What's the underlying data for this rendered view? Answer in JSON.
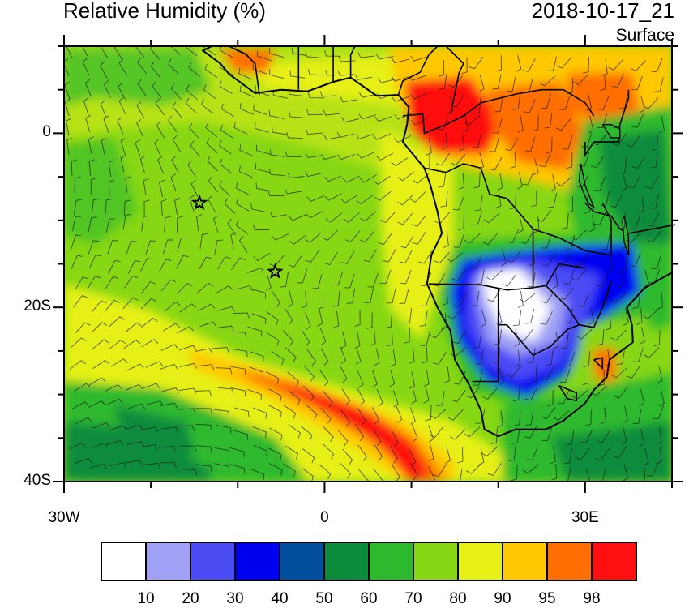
{
  "title": "Relative Humidity (%)",
  "datetime": "2018-10-17_21",
  "level": "Surface",
  "lat_ticks": [
    "0",
    "20S",
    "40S"
  ],
  "lon_ticks": [
    "30W",
    "0",
    "30E"
  ],
  "colorbar": {
    "labels": [
      "10",
      "20",
      "30",
      "40",
      "50",
      "60",
      "70",
      "80",
      "90",
      "95",
      "98"
    ],
    "colors": [
      "#ffffff",
      "#a0a0f5",
      "#4c4cf5",
      "#0000f0",
      "#004e9c",
      "#0a8c3c",
      "#2db92d",
      "#87d714",
      "#e6f014",
      "#ffc800",
      "#ff6e00",
      "#ff0f0f"
    ]
  },
  "map": {
    "domain_lon": [
      -30,
      40
    ],
    "domain_lat": [
      -40,
      10
    ],
    "markers": [
      {
        "lon": -14.4,
        "lat": -8.0,
        "symbol": "star"
      },
      {
        "lon": -5.7,
        "lat": -15.9,
        "symbol": "star"
      }
    ]
  }
}
